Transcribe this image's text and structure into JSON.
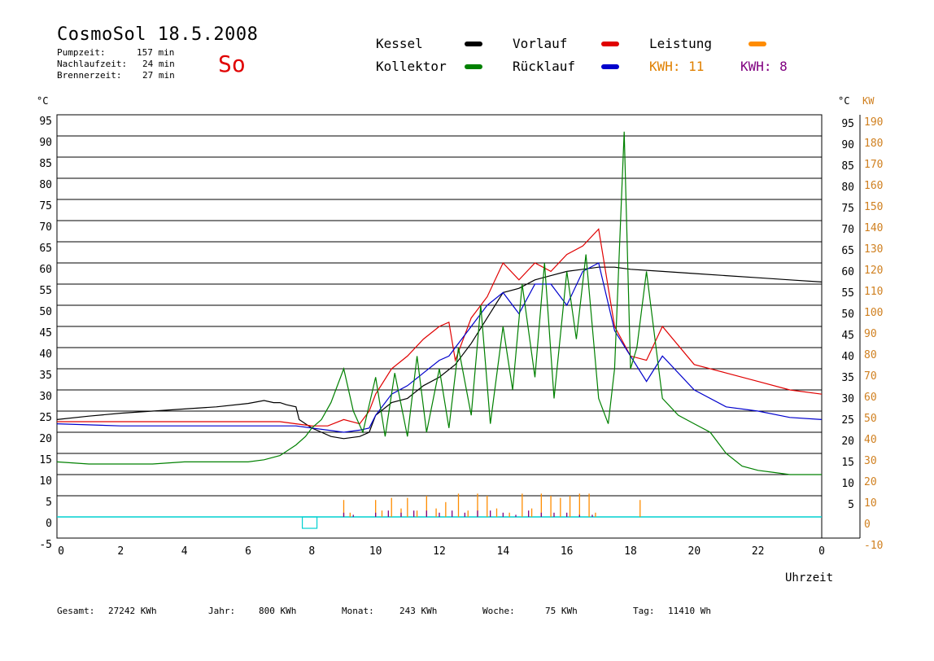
{
  "header": {
    "title": "CosmoSol 18.5.2008",
    "day_label": "So",
    "pump_label": "Pumpzeit:",
    "pump_value": "157 min",
    "after_label": "Nachlaufzeit:",
    "after_value": "24 min",
    "burner_label": "Brennerzeit:",
    "burner_value": "27 min"
  },
  "legend": {
    "kessel": "Kessel",
    "vorlauf": "Vorlauf",
    "leistung": "Leistung",
    "kollektor": "Kollektor",
    "ruecklauf": "Rücklauf",
    "kwh1": "KWH: 11",
    "kwh2": "KWH: 8"
  },
  "footer": {
    "gesamt_label": "Gesamt:",
    "gesamt_value": "27242 KWh",
    "jahr_label": "Jahr:",
    "jahr_value": "800 KWh",
    "monat_label": "Monat:",
    "monat_value": "243 KWh",
    "woche_label": "Woche:",
    "woche_value": "75 KWh",
    "tag_label": "Tag:",
    "tag_value": "11410 Wh"
  },
  "colors": {
    "kessel": "#000000",
    "vorlauf": "#e00000",
    "ruecklauf": "#0000cc",
    "kollektor": "#008000",
    "leistung": "#ff8c00",
    "leistung2": "#800080",
    "kw_axis": "#d08020",
    "baseline": "#00d0d0"
  },
  "chart_data": {
    "type": "line",
    "xlabel": "Uhrzeit",
    "ylabel_left": "°C",
    "ylabel_right_temp": "°C",
    "ylabel_right_power": "KW",
    "xlim": [
      0,
      24
    ],
    "ylim": [
      -5,
      95
    ],
    "x_ticks": [
      "0",
      "2",
      "4",
      "6",
      "8",
      "10",
      "12",
      "14",
      "16",
      "18",
      "20",
      "22",
      "0"
    ],
    "y_ticks_left": [
      "95",
      "90",
      "85",
      "80",
      "75",
      "70",
      "65",
      "60",
      "55",
      "50",
      "45",
      "40",
      "35",
      "30",
      "25",
      "20",
      "15",
      "10",
      "5",
      "0",
      "-5"
    ],
    "y_ticks_right_temp": [
      "95",
      "90",
      "85",
      "80",
      "75",
      "70",
      "65",
      "60",
      "55",
      "50",
      "45",
      "40",
      "35",
      "30",
      "25",
      "20",
      "15",
      "10",
      "5"
    ],
    "y_ticks_right_power": [
      "190",
      "180",
      "170",
      "160",
      "150",
      "140",
      "130",
      "120",
      "110",
      "100",
      "90",
      "80",
      "70",
      "60",
      "50",
      "40",
      "30",
      "20",
      "10",
      "0",
      "-10"
    ],
    "series": [
      {
        "name": "Kessel",
        "color_key": "kessel",
        "x": [
          0,
          1,
          2,
          3,
          4,
          5,
          6,
          6.5,
          6.8,
          7,
          7.2,
          7.5,
          7.6,
          7.8,
          8,
          8.3,
          8.6,
          9,
          9.5,
          9.8,
          10,
          10.5,
          11,
          11.5,
          12,
          12.5,
          13,
          13.5,
          14,
          14.5,
          15,
          15.5,
          16,
          16.5,
          17,
          17.5,
          18,
          19,
          20,
          21,
          22,
          23,
          24
        ],
        "y": [
          23,
          23.8,
          24.5,
          25,
          25.5,
          26,
          26.8,
          27.5,
          27,
          27,
          26.5,
          26,
          23,
          22,
          21,
          20,
          19,
          18.5,
          19,
          20,
          24,
          27,
          28,
          31,
          33,
          36,
          41,
          47,
          53,
          54,
          56,
          57,
          58,
          58.5,
          59,
          59,
          58.5,
          58,
          57.5,
          57,
          56.5,
          56,
          55.5
        ]
      },
      {
        "name": "Vorlauf",
        "color_key": "vorlauf",
        "x": [
          0,
          2,
          4,
          6,
          7,
          7.5,
          8,
          8.5,
          9,
          9.5,
          9.8,
          10,
          10.5,
          11,
          11.5,
          12,
          12.3,
          12.5,
          13,
          13.5,
          14,
          14.5,
          15,
          15.5,
          16,
          16.5,
          17,
          17.5,
          18,
          18.5,
          19,
          20,
          21,
          22,
          23,
          24
        ],
        "y": [
          22.5,
          22.5,
          22.5,
          22.5,
          22.5,
          22,
          21.5,
          21.5,
          23,
          22,
          25,
          29,
          35,
          38,
          42,
          45,
          46,
          37,
          47,
          52,
          60,
          56,
          60,
          58,
          62,
          64,
          68,
          45,
          38,
          37,
          45,
          36,
          34,
          32,
          30,
          29
        ]
      },
      {
        "name": "Rücklauf",
        "color_key": "ruecklauf",
        "x": [
          0,
          2,
          4,
          6,
          7,
          7.5,
          8,
          8.5,
          9,
          9.5,
          9.8,
          10,
          10.5,
          11,
          11.5,
          12,
          12.3,
          12.5,
          13,
          13.5,
          14,
          14.5,
          15,
          15.5,
          16,
          16.5,
          17,
          17.5,
          18,
          18.5,
          19,
          20,
          21,
          22,
          23,
          24
        ],
        "y": [
          22,
          21.5,
          21.5,
          21.5,
          21.5,
          21.5,
          21,
          20.5,
          20,
          20.5,
          21,
          24,
          29,
          31,
          34,
          37,
          38,
          40,
          45,
          50,
          53,
          48,
          55,
          55,
          50,
          58,
          60,
          44,
          38,
          32,
          38,
          30,
          26,
          25,
          23.5,
          23
        ]
      },
      {
        "name": "Kollektor",
        "color_key": "kollektor",
        "x": [
          0,
          1,
          2,
          3,
          4,
          5,
          6,
          6.5,
          7,
          7.5,
          7.8,
          8,
          8.3,
          8.6,
          9,
          9.3,
          9.6,
          10,
          10.3,
          10.6,
          11,
          11.3,
          11.6,
          12,
          12.3,
          12.6,
          13,
          13.3,
          13.6,
          14,
          14.3,
          14.6,
          15,
          15.3,
          15.6,
          16,
          16.3,
          16.6,
          17,
          17.3,
          17.5,
          17.8,
          18,
          18.2,
          18.5,
          19,
          19.5,
          20,
          20.5,
          21,
          21.5,
          22,
          22.5,
          23,
          23.5,
          24
        ],
        "y": [
          13,
          12.5,
          12.5,
          12.5,
          13,
          13,
          13,
          13.5,
          14.5,
          17,
          19,
          21,
          23,
          27,
          35,
          25,
          20,
          33,
          19,
          34,
          19,
          38,
          20,
          35,
          21,
          40,
          24,
          50,
          22,
          45,
          30,
          55,
          33,
          60,
          28,
          58,
          42,
          62,
          28,
          22,
          35,
          91,
          35,
          40,
          58,
          28,
          24,
          22,
          20,
          15,
          12,
          11,
          10.5,
          10,
          10,
          10
        ]
      }
    ],
    "power_series": [
      {
        "name": "Leistung",
        "color_key": "leistung",
        "x": [
          9,
          9.2,
          10,
          10.2,
          10.5,
          10.8,
          11,
          11.3,
          11.6,
          11.9,
          12.2,
          12.6,
          12.9,
          13.2,
          13.5,
          13.8,
          14.2,
          14.6,
          14.9,
          15.2,
          15.5,
          15.8,
          16.1,
          16.4,
          16.7,
          16.9,
          18.3
        ],
        "y": [
          8,
          2,
          8,
          3,
          9,
          4,
          9,
          3,
          10,
          4,
          7,
          11,
          3,
          11,
          10,
          4,
          2,
          11,
          4,
          11,
          10,
          9,
          10,
          11,
          11,
          2,
          8
        ]
      },
      {
        "name": "Leistung 2",
        "color_key": "leistung2",
        "x": [
          9,
          9.3,
          10,
          10.4,
          10.8,
          11.2,
          11.6,
          12,
          12.4,
          12.8,
          13.2,
          13.6,
          14,
          14.4,
          14.8,
          15.2,
          15.6,
          16,
          16.4,
          16.8
        ],
        "y": [
          2,
          1,
          2,
          3,
          2,
          3,
          3,
          2,
          3,
          2,
          3,
          3,
          2,
          1,
          3,
          2,
          2,
          2,
          1,
          1
        ]
      }
    ]
  }
}
